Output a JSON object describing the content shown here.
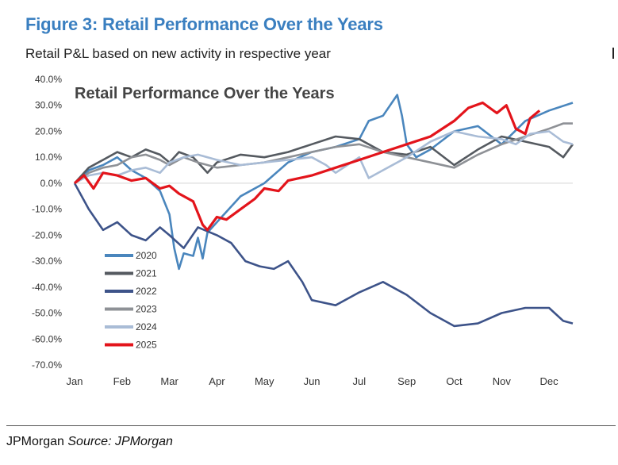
{
  "figure": {
    "title": "Figure 3: Retail Performance Over the Years",
    "subtitle": "Retail P&L based on new activity in respective year"
  },
  "footer": {
    "org": "JPMorgan",
    "source_label": "Source:",
    "source_name": "JPMorgan"
  },
  "chart_data": {
    "type": "line",
    "title": "Retail Performance Over the Years",
    "xlabel": "",
    "ylabel": "",
    "ylim": [
      -70,
      40
    ],
    "yticks": [
      40,
      30,
      20,
      10,
      0,
      -10,
      -20,
      -30,
      -40,
      -50,
      -60,
      -70
    ],
    "ytick_labels": [
      "40.0%",
      "30.0%",
      "20.0%",
      "10.0%",
      "0.0%",
      "-10.0%",
      "-20.0%",
      "-30.0%",
      "-40.0%",
      "-50.0%",
      "-60.0%",
      "-70.0%"
    ],
    "xlim": [
      0,
      10.5
    ],
    "categories": [
      "Jan",
      "Feb",
      "Mar",
      "Apr",
      "May",
      "Jun",
      "Jul",
      "Sep",
      "Oct",
      "Nov",
      "Dec"
    ],
    "grid": false,
    "zero_line": true,
    "legend_position": "lower-left",
    "series": [
      {
        "name": "2020",
        "color": "#4a86bd",
        "x": [
          0,
          0.3,
          0.6,
          0.9,
          1.2,
          1.5,
          1.8,
          2.0,
          2.1,
          2.2,
          2.3,
          2.5,
          2.6,
          2.7,
          2.8,
          3.0,
          3.5,
          4.0,
          4.5,
          5.0,
          5.5,
          6.0,
          6.2,
          6.5,
          6.8,
          6.9,
          7.0,
          7.2,
          7.5,
          8.0,
          8.5,
          9.0,
          9.5,
          10.0,
          10.5
        ],
        "values": [
          0,
          5,
          7,
          10,
          5,
          2,
          -3,
          -12,
          -25,
          -33,
          -27,
          -28,
          -21,
          -29,
          -19,
          -15,
          -5,
          0,
          8,
          12,
          14,
          17,
          24,
          26,
          34,
          26,
          15,
          10,
          13,
          20,
          22,
          15,
          24,
          28,
          31
        ]
      },
      {
        "name": "2021",
        "color": "#555a60",
        "x": [
          0,
          0.3,
          0.6,
          0.9,
          1.2,
          1.5,
          1.8,
          2.0,
          2.2,
          2.5,
          2.8,
          3.0,
          3.5,
          4.0,
          4.5,
          5.0,
          5.5,
          6.0,
          6.5,
          7.0,
          7.5,
          8.0,
          8.5,
          9.0,
          9.5,
          10.0,
          10.3,
          10.5
        ],
        "values": [
          0,
          6,
          9,
          12,
          10,
          13,
          11,
          8,
          12,
          10,
          4,
          8,
          11,
          10,
          12,
          15,
          18,
          17,
          12,
          11,
          14,
          7,
          13,
          18,
          16,
          14,
          10,
          15
        ]
      },
      {
        "name": "2022",
        "color": "#3d5389",
        "x": [
          0,
          0.3,
          0.6,
          0.9,
          1.2,
          1.5,
          1.8,
          2.0,
          2.3,
          2.6,
          3.0,
          3.3,
          3.6,
          3.9,
          4.2,
          4.5,
          4.8,
          5.0,
          5.5,
          6.0,
          6.5,
          7.0,
          7.5,
          8.0,
          8.5,
          9.0,
          9.5,
          10.0,
          10.3,
          10.5
        ],
        "values": [
          0,
          -10,
          -18,
          -15,
          -20,
          -22,
          -17,
          -20,
          -25,
          -17,
          -20,
          -23,
          -30,
          -32,
          -33,
          -30,
          -38,
          -45,
          -47,
          -42,
          -38,
          -43,
          -50,
          -55,
          -54,
          -50,
          -48,
          -48,
          -53,
          -54
        ]
      },
      {
        "name": "2023",
        "color": "#8e9196",
        "x": [
          0,
          0.3,
          0.6,
          0.9,
          1.2,
          1.5,
          1.8,
          2.0,
          2.3,
          2.6,
          3.0,
          3.5,
          4.0,
          4.5,
          5.0,
          5.5,
          6.0,
          6.5,
          7.0,
          7.5,
          8.0,
          8.5,
          9.0,
          9.5,
          10.0,
          10.3,
          10.5
        ],
        "values": [
          0,
          4,
          6,
          7,
          10,
          11,
          9,
          7,
          10,
          8,
          6,
          7,
          8,
          10,
          12,
          14,
          15,
          12,
          10,
          8,
          6,
          11,
          15,
          18,
          21,
          23,
          23
        ]
      },
      {
        "name": "2024",
        "color": "#a9bcd6",
        "x": [
          0,
          0.3,
          0.6,
          0.9,
          1.2,
          1.5,
          1.8,
          2.0,
          2.3,
          2.6,
          3.0,
          3.5,
          4.0,
          4.5,
          5.0,
          5.3,
          5.5,
          6.0,
          6.2,
          6.5,
          7.0,
          7.5,
          8.0,
          8.5,
          9.0,
          9.3,
          9.6,
          10.0,
          10.3,
          10.5
        ],
        "values": [
          0,
          3,
          4,
          3,
          5,
          6,
          4,
          8,
          10,
          11,
          9,
          7,
          8,
          9,
          10,
          7,
          4,
          10,
          2,
          5,
          10,
          16,
          20,
          18,
          17,
          15,
          19,
          20,
          16,
          15
        ]
      },
      {
        "name": "2025",
        "color": "#e3141b",
        "x": [
          0,
          0.2,
          0.4,
          0.6,
          0.9,
          1.2,
          1.5,
          1.8,
          2.0,
          2.2,
          2.5,
          2.7,
          2.8,
          3.0,
          3.2,
          3.5,
          3.8,
          4.0,
          4.3,
          4.5,
          5.0,
          5.5,
          6.0,
          6.5,
          7.0,
          7.5,
          8.0,
          8.3,
          8.6,
          8.9,
          9.1,
          9.3,
          9.5,
          9.6,
          9.8
        ],
        "values": [
          0,
          3,
          -2,
          4,
          3,
          1,
          2,
          -2,
          -1,
          -4,
          -7,
          -16,
          -18,
          -13,
          -14,
          -10,
          -6,
          -2,
          -3,
          1,
          3,
          6,
          9,
          12,
          15,
          18,
          24,
          29,
          31,
          27,
          30,
          21,
          19,
          25,
          28
        ]
      }
    ]
  }
}
